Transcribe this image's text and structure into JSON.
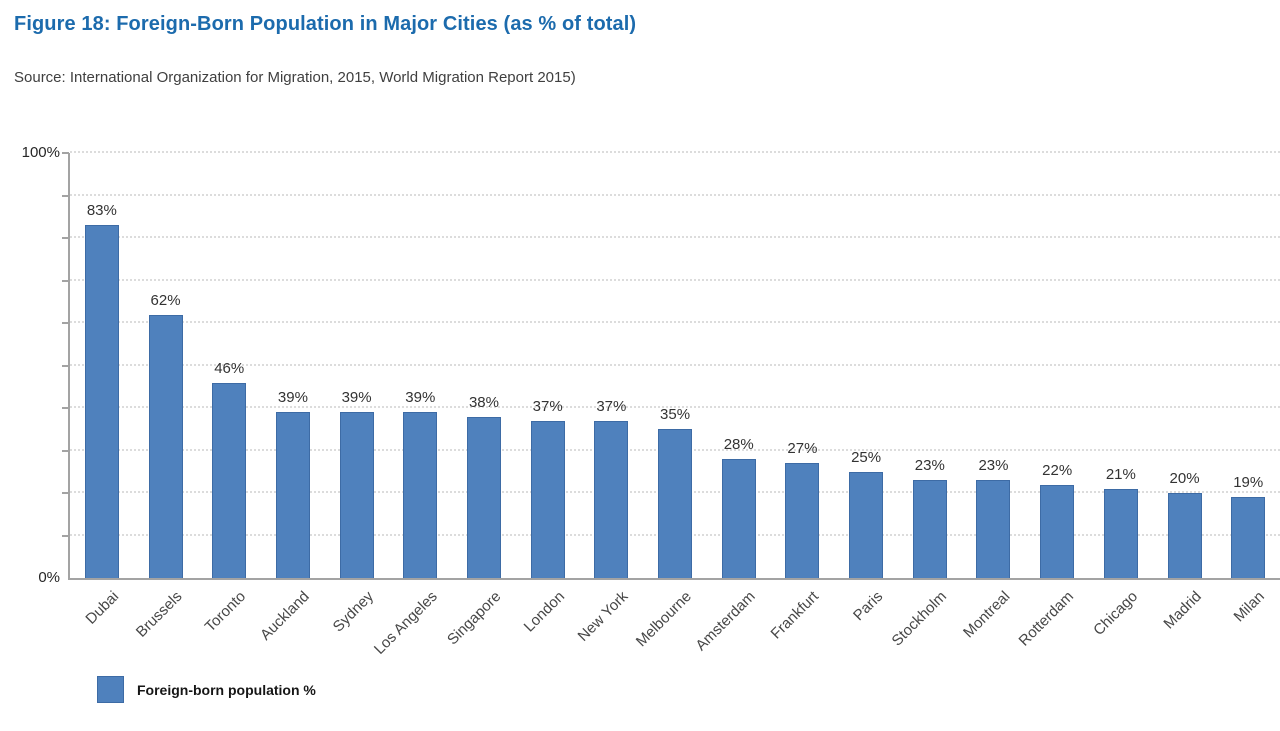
{
  "header": {
    "title": "Figure 18: Foreign-Born Population in Major Cities (as % of total)",
    "source": "Source: International Organization for Migration, 2015, World Migration Report 2015)"
  },
  "chart_data": {
    "type": "bar",
    "title": "Foreign-Born Population in Major Cities (as % of total)",
    "categories": [
      "Dubai",
      "Brussels",
      "Toronto",
      "Auckland",
      "Sydney",
      "Los Angeles",
      "Singapore",
      "London",
      "New York",
      "Melbourne",
      "Amsterdam",
      "Frankfurt",
      "Paris",
      "Stockholm",
      "Montreal",
      "Rotterdam",
      "Chicago",
      "Madrid",
      "Milan"
    ],
    "values": [
      83,
      62,
      46,
      39,
      39,
      39,
      38,
      37,
      37,
      35,
      28,
      27,
      25,
      23,
      23,
      22,
      21,
      20,
      19
    ],
    "value_labels": [
      "83%",
      "62%",
      "46%",
      "39%",
      "39%",
      "39%",
      "38%",
      "37%",
      "37%",
      "35%",
      "28%",
      "27%",
      "25%",
      "23%",
      "23%",
      "22%",
      "21%",
      "20%",
      "19%"
    ],
    "xlabel": "",
    "ylabel": "",
    "ylim": [
      0,
      100
    ],
    "ymax_label": "100%",
    "ymin_label": "0%",
    "gridline_step": 10,
    "grid": "horizontal-dotted",
    "legend_position": "bottom-left",
    "legend": [
      {
        "label": "Foreign-born population %",
        "color": "#4f81bd"
      }
    ]
  },
  "colors": {
    "title": "#1c6bad",
    "bar": "#4f81bd",
    "bar_border": "#3d6ba5",
    "axis": "#a3a3a3",
    "gridline": "#dcdcdc",
    "text": "#333333"
  }
}
